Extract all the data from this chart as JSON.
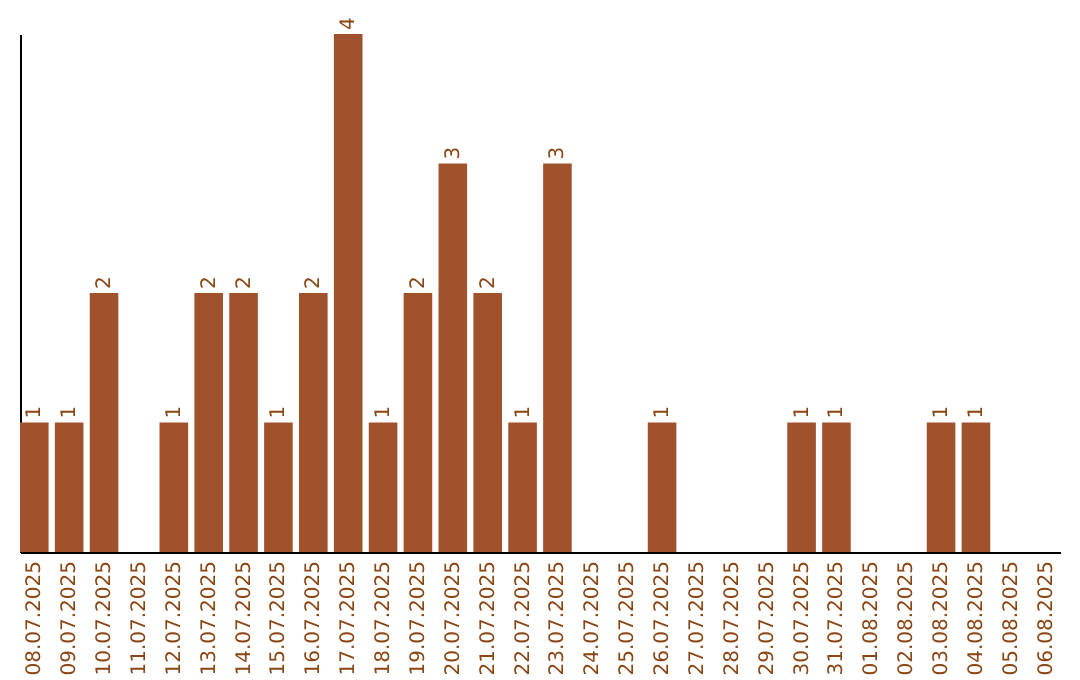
{
  "chart_data": {
    "type": "bar",
    "categories": [
      "08.07.2025",
      "09.07.2025",
      "10.07.2025",
      "11.07.2025",
      "12.07.2025",
      "13.07.2025",
      "14.07.2025",
      "15.07.2025",
      "16.07.2025",
      "17.07.2025",
      "18.07.2025",
      "19.07.2025",
      "20.07.2025",
      "21.07.2025",
      "22.07.2025",
      "23.07.2025",
      "24.07.2025",
      "25.07.2025",
      "26.07.2025",
      "27.07.2025",
      "28.07.2025",
      "29.07.2025",
      "30.07.2025",
      "31.07.2025",
      "01.08.2025",
      "02.08.2025",
      "03.08.2025",
      "04.08.2025",
      "05.08.2025",
      "06.08.2025"
    ],
    "values": [
      1,
      1,
      2,
      0,
      1,
      2,
      2,
      1,
      2,
      4,
      1,
      2,
      3,
      2,
      1,
      3,
      0,
      0,
      1,
      0,
      0,
      0,
      1,
      1,
      0,
      0,
      1,
      1,
      0,
      0
    ],
    "value_labels": [
      "1",
      "1",
      "2",
      null,
      "1",
      "2",
      "2",
      "1",
      "2",
      "4",
      "1",
      "2",
      "3",
      "2",
      "1",
      "3",
      null,
      null,
      "1",
      null,
      null,
      null,
      "1",
      "1",
      null,
      null,
      "1",
      "1",
      null,
      null
    ],
    "color": "#a0522d",
    "grid": false,
    "tick_labels": "x"
  }
}
